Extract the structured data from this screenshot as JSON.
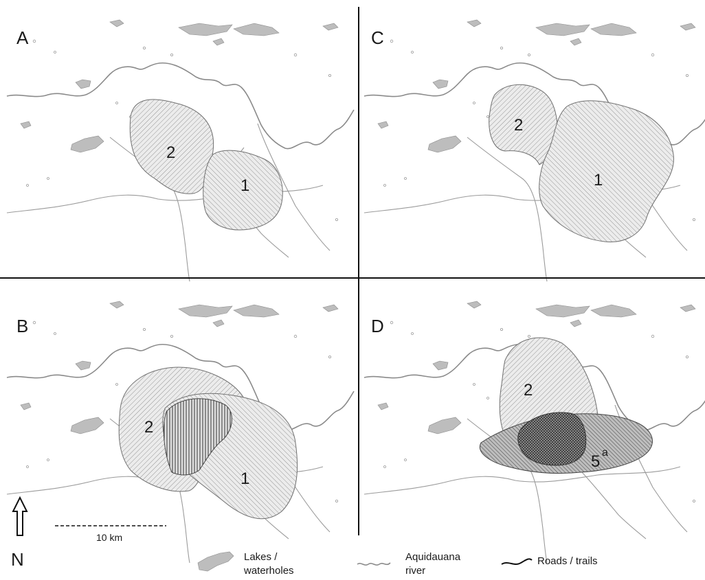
{
  "panels": [
    {
      "letter": "A",
      "ranges": [
        "2",
        "1"
      ]
    },
    {
      "letter": "C",
      "ranges": [
        "2",
        "1"
      ]
    },
    {
      "letter": "B",
      "ranges": [
        "2",
        "1"
      ]
    },
    {
      "letter": "D",
      "ranges": [
        "2",
        "5",
        "a"
      ]
    }
  ],
  "north_label": "N",
  "scale_label": "10 km",
  "legend": {
    "lakes_line1": "Lakes /",
    "lakes_line2": "waterholes",
    "river_line1": "Aquidauana",
    "river_line2": "river",
    "roads": "Roads / trails"
  },
  "colors": {
    "ink": "#1a1a1a",
    "river": "#8a8a8a",
    "lake_fill": "#bdbdbd",
    "hatch": "#7a7a7a"
  }
}
